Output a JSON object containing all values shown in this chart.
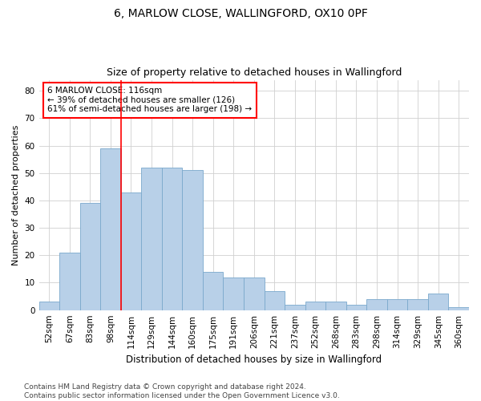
{
  "title": "6, MARLOW CLOSE, WALLINGFORD, OX10 0PF",
  "subtitle": "Size of property relative to detached houses in Wallingford",
  "xlabel": "Distribution of detached houses by size in Wallingford",
  "ylabel": "Number of detached properties",
  "categories": [
    "52sqm",
    "67sqm",
    "83sqm",
    "98sqm",
    "114sqm",
    "129sqm",
    "144sqm",
    "160sqm",
    "175sqm",
    "191sqm",
    "206sqm",
    "221sqm",
    "237sqm",
    "252sqm",
    "268sqm",
    "283sqm",
    "298sqm",
    "314sqm",
    "329sqm",
    "345sqm",
    "360sqm"
  ],
  "values": [
    3,
    21,
    39,
    59,
    43,
    52,
    52,
    51,
    14,
    12,
    12,
    7,
    2,
    3,
    3,
    2,
    4,
    4,
    4,
    6,
    1
  ],
  "bar_color": "#b8d0e8",
  "bar_edge_color": "#7aa8cc",
  "red_line_index": 4,
  "annotation_line1": "6 MARLOW CLOSE: 116sqm",
  "annotation_line2": "← 39% of detached houses are smaller (126)",
  "annotation_line3": "61% of semi-detached houses are larger (198) →",
  "annotation_box_color": "white",
  "annotation_box_edge_color": "red",
  "ylim": [
    0,
    84
  ],
  "yticks": [
    0,
    10,
    20,
    30,
    40,
    50,
    60,
    70,
    80
  ],
  "grid_color": "#d0d0d0",
  "footnote": "Contains HM Land Registry data © Crown copyright and database right 2024.\nContains public sector information licensed under the Open Government Licence v3.0.",
  "title_fontsize": 10,
  "subtitle_fontsize": 9,
  "xlabel_fontsize": 8.5,
  "ylabel_fontsize": 8,
  "tick_fontsize": 7.5,
  "annotation_fontsize": 7.5,
  "footnote_fontsize": 6.5
}
